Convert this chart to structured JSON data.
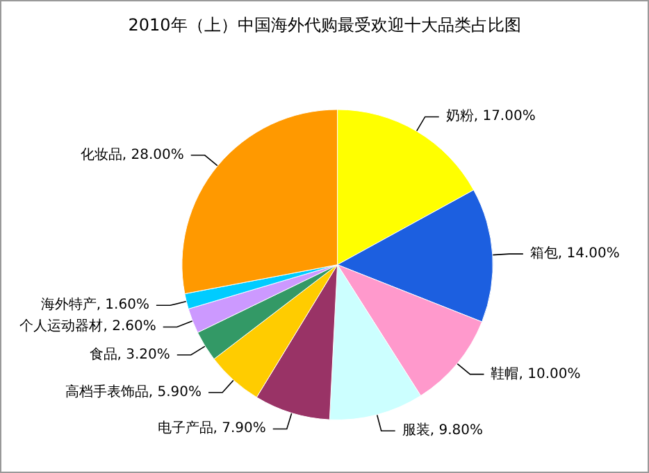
{
  "chart_data": {
    "type": "pie",
    "title": "2010年（上）中国海外代购最受欢迎十大品类占比图",
    "categories": [
      "奶粉",
      "箱包",
      "鞋帽",
      "服装",
      "电子产品",
      "高档手表饰品",
      "食品",
      "个人运动器材",
      "海外特产",
      "化妆品"
    ],
    "values": [
      17.0,
      14.0,
      10.0,
      9.8,
      7.9,
      5.9,
      3.2,
      2.6,
      1.6,
      28.0
    ],
    "value_labels": [
      "17.00%",
      "14.00%",
      "10.00%",
      "9.80%",
      "7.90%",
      "5.90%",
      "3.20%",
      "2.60%",
      "1.60%",
      "28.00%"
    ],
    "colors": [
      "#ffff00",
      "#1c5fe0",
      "#ff99cc",
      "#ccffff",
      "#993366",
      "#ffcc00",
      "#339966",
      "#cc99ff",
      "#00ccff",
      "#ff9900"
    ],
    "legend": false
  }
}
